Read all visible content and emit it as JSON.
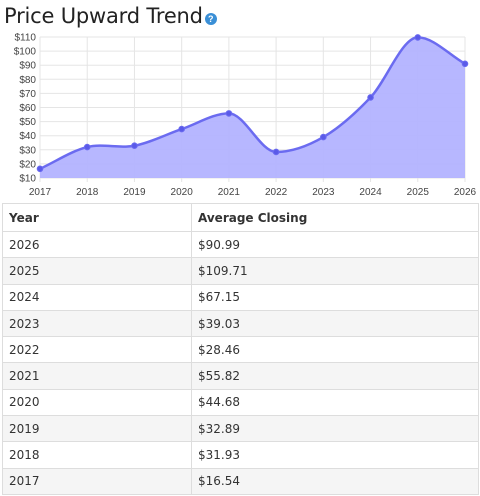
{
  "title": "Price Upward Trend",
  "help_icon": "question-circle-icon",
  "colors": {
    "line": "#6b6bf0",
    "fill": "#b3b3ff",
    "point": "#5a5ae8",
    "grid": "#e5e5e5"
  },
  "chart_data": {
    "type": "area",
    "x": [
      "2017",
      "2018",
      "2019",
      "2020",
      "2021",
      "2022",
      "2023",
      "2024",
      "2025",
      "2026"
    ],
    "series": [
      {
        "values": [
          16.54,
          31.93,
          32.89,
          44.68,
          55.82,
          28.46,
          39.03,
          67.15,
          109.71,
          90.99
        ]
      }
    ],
    "yticks": [
      "$10",
      "$20",
      "$30",
      "$40",
      "$50",
      "$60",
      "$70",
      "$80",
      "$90",
      "$100",
      "$110"
    ],
    "ylim": [
      10,
      110
    ],
    "grid": true
  },
  "table": {
    "headers": [
      "Year",
      "Average Closing"
    ],
    "rows": [
      [
        "2026",
        "$90.99"
      ],
      [
        "2025",
        "$109.71"
      ],
      [
        "2024",
        "$67.15"
      ],
      [
        "2023",
        "$39.03"
      ],
      [
        "2022",
        "$28.46"
      ],
      [
        "2021",
        "$55.82"
      ],
      [
        "2020",
        "$44.68"
      ],
      [
        "2019",
        "$32.89"
      ],
      [
        "2018",
        "$31.93"
      ],
      [
        "2017",
        "$16.54"
      ]
    ]
  }
}
